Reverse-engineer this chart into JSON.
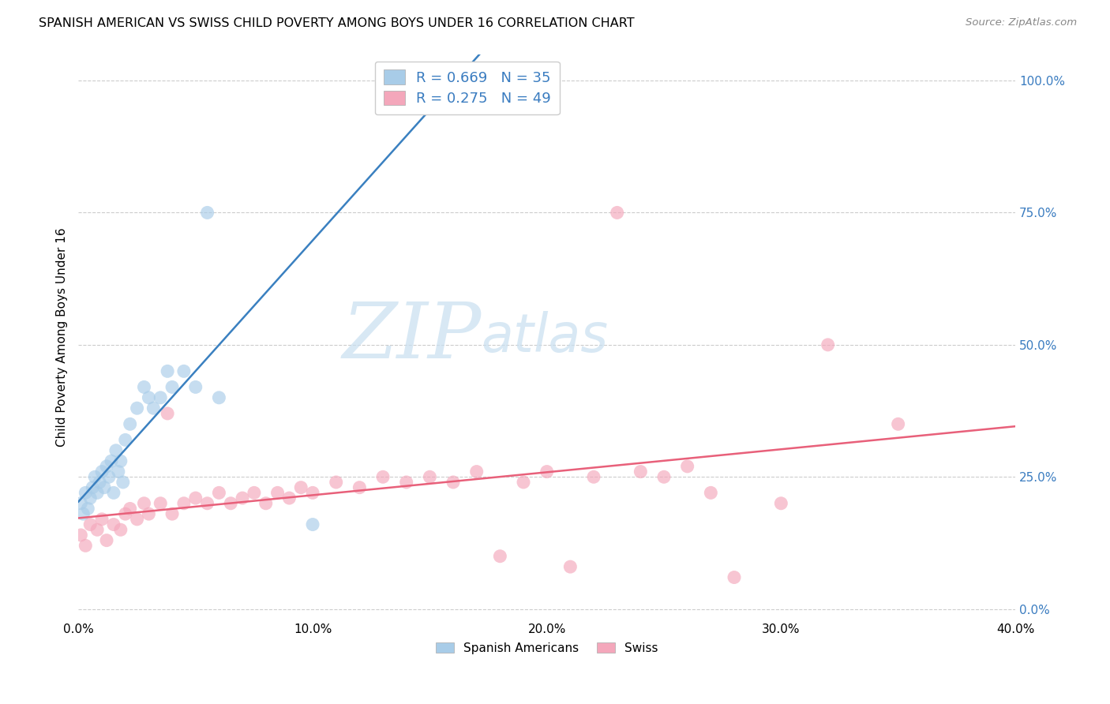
{
  "title": "SPANISH AMERICAN VS SWISS CHILD POVERTY AMONG BOYS UNDER 16 CORRELATION CHART",
  "source": "Source: ZipAtlas.com",
  "ylabel": "Child Poverty Among Boys Under 16",
  "xlim": [
    0.0,
    0.4
  ],
  "ylim": [
    -0.02,
    1.05
  ],
  "xticks": [
    0.0,
    0.1,
    0.2,
    0.3,
    0.4
  ],
  "yticks": [
    0.0,
    0.25,
    0.5,
    0.75,
    1.0
  ],
  "xticklabels": [
    "0.0%",
    "10.0%",
    "20.0%",
    "30.0%",
    "40.0%"
  ],
  "left_yticklabels": [
    "",
    "",
    "",
    "",
    ""
  ],
  "right_yticklabels": [
    "0.0%",
    "25.0%",
    "50.0%",
    "75.0%",
    "100.0%"
  ],
  "legend_r1": "R = 0.669",
  "legend_n1": "N = 35",
  "legend_r2": "R = 0.275",
  "legend_n2": "N = 49",
  "blue_color": "#a8cce8",
  "pink_color": "#f4a7bb",
  "blue_line_color": "#3a80c0",
  "pink_line_color": "#e8607a",
  "legend_text_color": "#3a7cc0",
  "background_color": "#ffffff",
  "watermark_zip": "ZIP",
  "watermark_atlas": "atlas",
  "spanish_x": [
    0.001,
    0.002,
    0.003,
    0.004,
    0.005,
    0.006,
    0.007,
    0.008,
    0.009,
    0.01,
    0.011,
    0.012,
    0.013,
    0.014,
    0.015,
    0.016,
    0.017,
    0.018,
    0.019,
    0.02,
    0.022,
    0.025,
    0.028,
    0.03,
    0.032,
    0.035,
    0.038,
    0.04,
    0.045,
    0.05,
    0.055,
    0.06,
    0.1,
    0.13,
    0.135
  ],
  "spanish_y": [
    0.2,
    0.18,
    0.22,
    0.19,
    0.21,
    0.23,
    0.25,
    0.22,
    0.24,
    0.26,
    0.23,
    0.27,
    0.25,
    0.28,
    0.22,
    0.3,
    0.26,
    0.28,
    0.24,
    0.32,
    0.35,
    0.38,
    0.42,
    0.4,
    0.38,
    0.4,
    0.45,
    0.42,
    0.45,
    0.42,
    0.75,
    0.4,
    0.16,
    1.0,
    1.0
  ],
  "swiss_x": [
    0.001,
    0.003,
    0.005,
    0.008,
    0.01,
    0.012,
    0.015,
    0.018,
    0.02,
    0.022,
    0.025,
    0.028,
    0.03,
    0.035,
    0.038,
    0.04,
    0.045,
    0.05,
    0.055,
    0.06,
    0.065,
    0.07,
    0.075,
    0.08,
    0.085,
    0.09,
    0.095,
    0.1,
    0.11,
    0.12,
    0.13,
    0.14,
    0.15,
    0.16,
    0.17,
    0.18,
    0.19,
    0.2,
    0.21,
    0.22,
    0.23,
    0.24,
    0.25,
    0.26,
    0.27,
    0.28,
    0.3,
    0.32,
    0.35
  ],
  "swiss_y": [
    0.14,
    0.12,
    0.16,
    0.15,
    0.17,
    0.13,
    0.16,
    0.15,
    0.18,
    0.19,
    0.17,
    0.2,
    0.18,
    0.2,
    0.37,
    0.18,
    0.2,
    0.21,
    0.2,
    0.22,
    0.2,
    0.21,
    0.22,
    0.2,
    0.22,
    0.21,
    0.23,
    0.22,
    0.24,
    0.23,
    0.25,
    0.24,
    0.25,
    0.24,
    0.26,
    0.1,
    0.24,
    0.26,
    0.08,
    0.25,
    0.75,
    0.26,
    0.25,
    0.27,
    0.22,
    0.06,
    0.2,
    0.5,
    0.35
  ]
}
